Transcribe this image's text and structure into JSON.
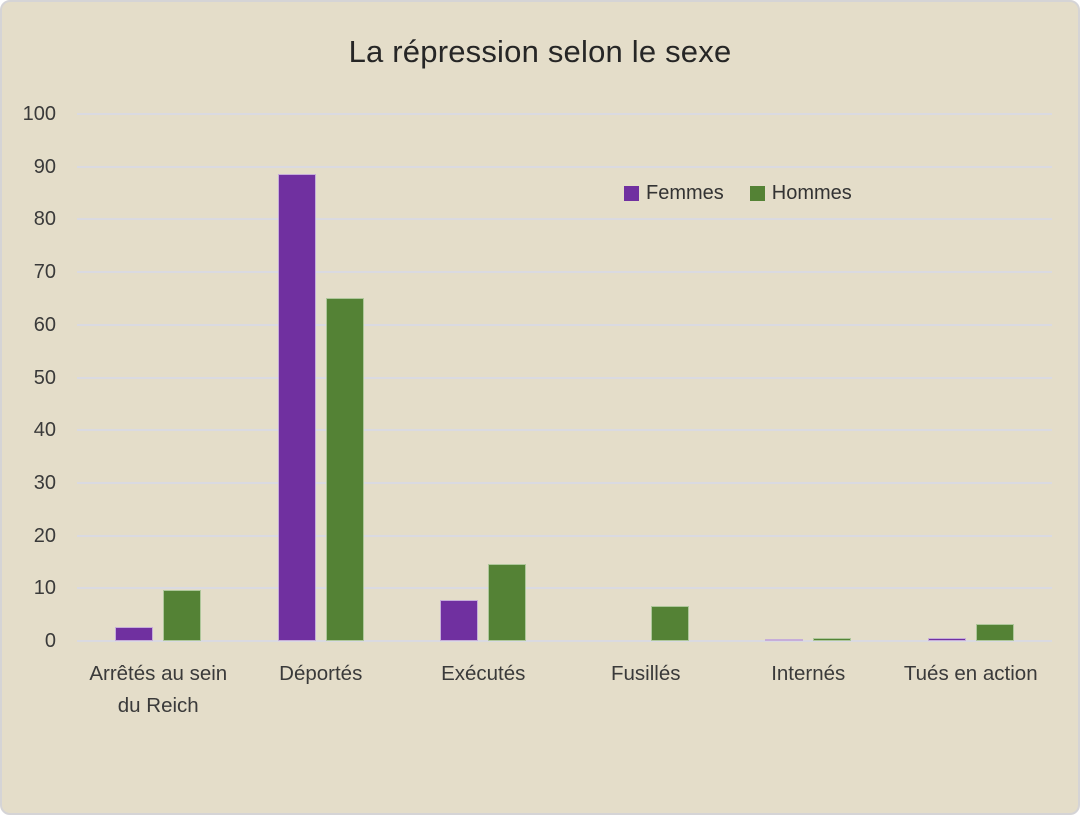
{
  "chart_data": {
    "type": "bar",
    "title": "La répression selon le sexe",
    "categories": [
      "Arrêtés au sein du Reich",
      "Déportés",
      "Exécutés",
      "Fusillés",
      "Internés",
      "Tués en action"
    ],
    "series": [
      {
        "name": "Femmes",
        "color": "#7030a0",
        "border_color": "#c6add9",
        "values": [
          2.6,
          88.6,
          7.8,
          0,
          0.4,
          0.5
        ]
      },
      {
        "name": "Hommes",
        "color": "#548235",
        "border_color": "#aec79a",
        "values": [
          9.6,
          65,
          14.6,
          6.6,
          0.6,
          3.2
        ]
      }
    ],
    "xlabel": "",
    "ylabel": "",
    "ylim": [
      0,
      100
    ],
    "ytick_step": 10,
    "grid": true,
    "legend_position": "inside-top-right"
  },
  "colors": {
    "background": "#e4ddc9",
    "gridline": "#dadae1",
    "frame_border": "#d5d4d6",
    "text": "#3a3a3a"
  }
}
